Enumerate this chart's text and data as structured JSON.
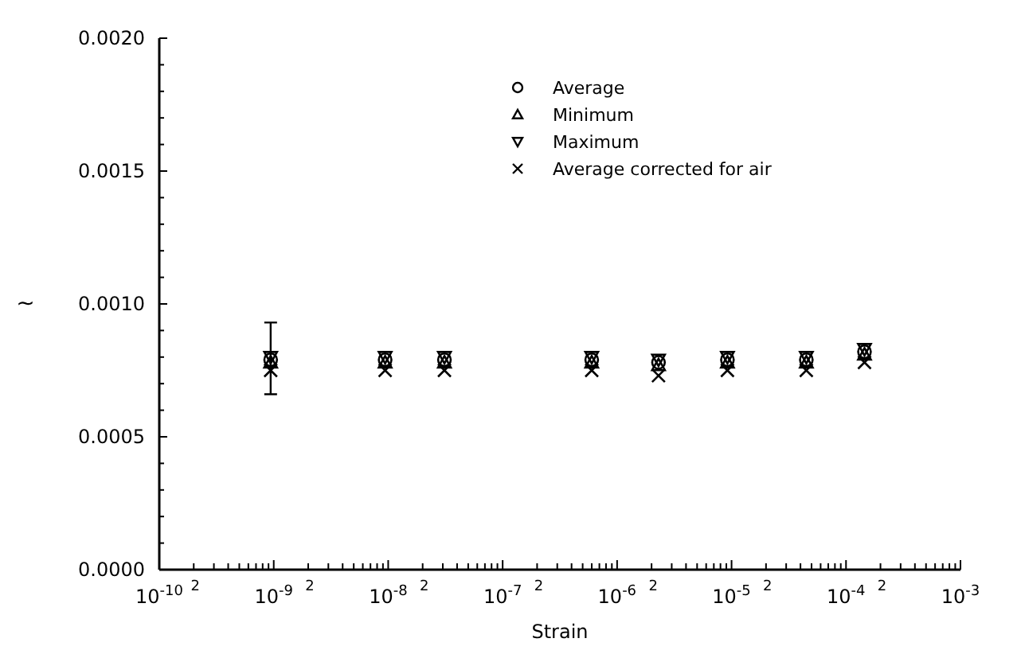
{
  "chart_data": {
    "type": "scatter",
    "xlabel": "Strain",
    "ylabel": "~",
    "log": "x",
    "grid": false,
    "legend": "top right",
    "x": [
      9.4e-10,
      9.4e-09,
      3.1e-08,
      6e-07,
      2.3e-06,
      9.2e-06,
      4.5e-05,
      0.000145
    ],
    "series": [
      {
        "name": "Average",
        "color": "#000000",
        "marker": "circle",
        "values": [
          0.00079,
          0.00079,
          0.00079,
          0.00079,
          0.00078,
          0.00079,
          0.00079,
          0.00082
        ],
        "errors": [
          [
            0.00066,
            0.00093
          ],
          null,
          null,
          null,
          null,
          null,
          null,
          null
        ]
      },
      {
        "name": "Minimum",
        "color": "#000000",
        "marker": "triangle",
        "values": [
          0.00078,
          0.00078,
          0.00078,
          0.00078,
          0.00077,
          0.00078,
          0.00078,
          0.00081
        ]
      },
      {
        "name": "Maximum",
        "color": "#000000",
        "marker": "triangle-down",
        "values": [
          0.0008,
          0.0008,
          0.0008,
          0.0008,
          0.00079,
          0.0008,
          0.0008,
          0.00083
        ]
      },
      {
        "name": "Average corrected for air",
        "color": "#000000",
        "marker": "cross",
        "values": [
          0.00075,
          0.00075,
          0.00075,
          0.00075,
          0.00073,
          0.00075,
          0.00075,
          0.00078
        ]
      }
    ],
    "annotations": [
      "2",
      "2",
      "2",
      "2",
      "2",
      "2",
      "2"
    ],
    "xlim": [
      1e-10,
      0.001
    ],
    "xticks": [
      {
        "value": 1e-10,
        "label": "10$^{-10}$"
      },
      {
        "value": 2e-10,
        "label": null
      },
      {
        "value": 3e-10,
        "label": null
      },
      {
        "value": 4e-10,
        "label": null
      },
      {
        "value": 5e-10,
        "label": null
      },
      {
        "value": 6e-10,
        "label": null
      },
      {
        "value": 7e-10,
        "label": null
      },
      {
        "value": 8e-10,
        "label": null
      },
      {
        "value": 9e-10,
        "label": null
      },
      {
        "value": 1e-09,
        "label": "10$^{-9}$"
      },
      {
        "value": 2e-09,
        "label": null
      },
      {
        "value": 3e-09,
        "label": null
      },
      {
        "value": 4e-09,
        "label": null
      },
      {
        "value": 5e-09,
        "label": null
      },
      {
        "value": 6e-09,
        "label": null
      },
      {
        "value": 7e-09,
        "label": null
      },
      {
        "value": 8e-09,
        "label": null
      },
      {
        "value": 9e-09,
        "label": null
      },
      {
        "value": 1e-08,
        "label": "10$^{-8}$"
      },
      {
        "value": 2e-08,
        "label": null
      },
      {
        "value": 3e-08,
        "label": null
      },
      {
        "value": 4e-08,
        "label": null
      },
      {
        "value": 5e-08,
        "label": null
      },
      {
        "value": 6e-08,
        "label": null
      },
      {
        "value": 7e-08,
        "label": null
      },
      {
        "value": 8e-08,
        "label": null
      },
      {
        "value": 9e-08,
        "label": null
      },
      {
        "value": 1e-07,
        "label": "10$^{-7}$"
      },
      {
        "value": 2e-07,
        "label": null
      },
      {
        "value": 3e-07,
        "label": null
      },
      {
        "value": 4e-07,
        "label": null
      },
      {
        "value": 5e-07,
        "label": null
      },
      {
        "value": 6e-07,
        "label": null
      },
      {
        "value": 7e-07,
        "label": null
      },
      {
        "value": 8e-07,
        "label": null
      },
      {
        "value": 9e-07,
        "label": null
      },
      {
        "value": 1e-06,
        "label": "10$^{-6}$"
      },
      {
        "value": 2e-06,
        "label": null
      },
      {
        "value": 3e-06,
        "label": null
      },
      {
        "value": 4e-06,
        "label": null
      },
      {
        "value": 5e-06,
        "label": null
      },
      {
        "value": 6e-06,
        "label": null
      },
      {
        "value": 7e-06,
        "label": null
      },
      {
        "value": 8e-06,
        "label": null
      },
      {
        "value": 9e-06,
        "label": null
      },
      {
        "value": 1e-05,
        "label": "10$^{-5}$"
      },
      {
        "value": 2e-05,
        "label": null
      },
      {
        "value": 3e-05,
        "label": null
      },
      {
        "value": 4e-05,
        "label": null
      },
      {
        "value": 5e-05,
        "label": null
      },
      {
        "value": 6e-05,
        "label": null
      },
      {
        "value": 7e-05,
        "label": null
      },
      {
        "value": 8e-05,
        "label": null
      },
      {
        "value": 9e-05,
        "label": null
      },
      {
        "value": 0.0001,
        "label": "10$^{-4}$"
      },
      {
        "value": 0.0002,
        "label": null
      },
      {
        "value": 0.0003,
        "label": null
      },
      {
        "value": 0.0004,
        "label": null
      },
      {
        "value": 0.0005,
        "label": null
      },
      {
        "value": 0.0006,
        "label": null
      },
      {
        "value": 0.0007,
        "label": null
      },
      {
        "value": 0.0008,
        "label": null
      },
      {
        "value": 0.0009,
        "label": null
      },
      {
        "value": 0.001,
        "label": "10$^{-3}$"
      }
    ],
    "ylim": [
      0,
      0.002
    ],
    "yticks": [
      {
        "value": 0,
        "label": "0.0000"
      },
      {
        "value": 0.0001,
        "label": null
      },
      {
        "value": 0.0002,
        "label": null
      },
      {
        "value": 0.0003,
        "label": null
      },
      {
        "value": 0.0004,
        "label": null
      },
      {
        "value": 0.0005,
        "label": "0.0005"
      },
      {
        "value": 0.0006,
        "label": null
      },
      {
        "value": 0.0007,
        "label": null
      },
      {
        "value": 0.0008,
        "label": null
      },
      {
        "value": 0.0009,
        "label": null
      },
      {
        "value": 0.001,
        "label": "0.0010"
      },
      {
        "value": 0.0011,
        "label": null
      },
      {
        "value": 0.0012,
        "label": null
      },
      {
        "value": 0.0013,
        "label": null
      },
      {
        "value": 0.0014,
        "label": null
      },
      {
        "value": 0.0015,
        "label": "0.0015"
      },
      {
        "value": 0.0016,
        "label": null
      },
      {
        "value": 0.0017,
        "label": null
      },
      {
        "value": 0.0018,
        "label": null
      },
      {
        "value": 0.0019,
        "label": null
      },
      {
        "value": 0.002,
        "label": "0.0020"
      }
    ]
  }
}
